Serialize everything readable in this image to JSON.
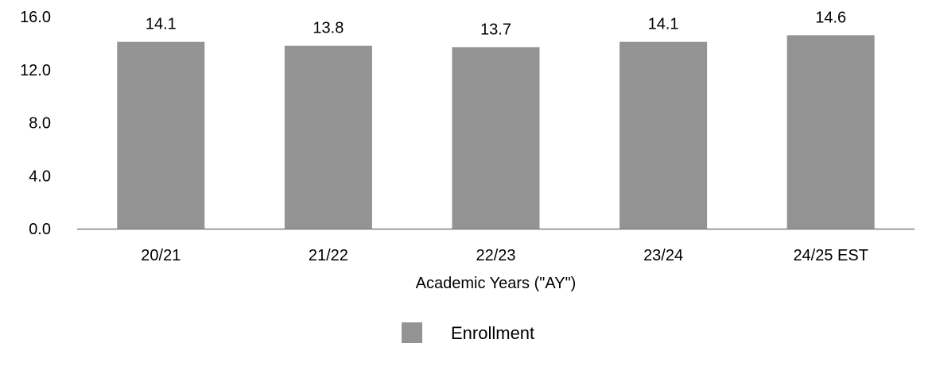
{
  "chart_data": {
    "type": "bar",
    "categories": [
      "20/21",
      "21/22",
      "22/23",
      "23/24",
      "24/25 EST"
    ],
    "series": [
      {
        "name": "Enrollment",
        "values": [
          14.1,
          13.8,
          13.7,
          14.1,
          14.6
        ],
        "color": "#939393"
      }
    ],
    "data_labels": [
      "14.1",
      "13.8",
      "13.7",
      "14.1",
      "14.6"
    ],
    "xlabel": "Academic Years (\"AY\")",
    "ylabel": "",
    "ylim": [
      0,
      16
    ],
    "yticks": [
      0,
      4,
      8,
      12,
      16
    ],
    "ytick_labels": [
      "0.0",
      "4.0",
      "8.0",
      "12.0",
      "16.0"
    ],
    "grid": false,
    "legend": {
      "position": "bottom-center",
      "entries": [
        "Enrollment"
      ]
    },
    "axis_color": "#808080"
  }
}
